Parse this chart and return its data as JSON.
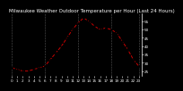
{
  "title": "Milwaukee Weather Outdoor Temperature per Hour (Last 24 Hours)",
  "hours": [
    0,
    1,
    2,
    3,
    4,
    5,
    6,
    7,
    8,
    9,
    10,
    11,
    12,
    13,
    14,
    15,
    16,
    17,
    18,
    19,
    20,
    21,
    22,
    23
  ],
  "temps": [
    27,
    26,
    25,
    25,
    26,
    27,
    28,
    32,
    36,
    40,
    45,
    50,
    54,
    57,
    55,
    52,
    50,
    51,
    50,
    48,
    43,
    38,
    32,
    28
  ],
  "line_color": "#cc0000",
  "marker_color": "#000000",
  "bg_color": "#000000",
  "plot_bg": "#000000",
  "title_color": "#ffffff",
  "tick_color": "#ffffff",
  "grid_color": "#555555",
  "spine_color": "#ffffff",
  "ylim": [
    22,
    60
  ],
  "yticks": [
    25,
    30,
    35,
    40,
    45,
    50,
    55
  ],
  "ytick_labels": [
    "25",
    "30",
    "35",
    "40",
    "45",
    "50",
    "55"
  ],
  "title_fontsize": 4.0,
  "tick_fontsize": 3.0,
  "ylabel_fontsize": 3.0,
  "vgrid_positions": [
    0,
    6,
    12,
    18,
    23
  ]
}
